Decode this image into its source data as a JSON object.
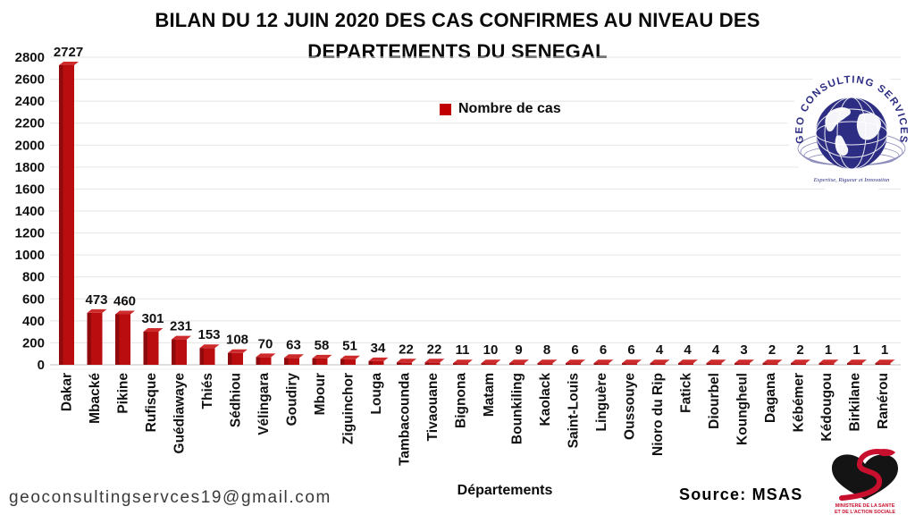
{
  "title": {
    "line1": "BILAN DU 12 JUIN 2020 DES CAS CONFIRMES AU NIVEAU DES",
    "line2": "DEPARTEMENTS DU SENEGAL"
  },
  "legend": {
    "label": "Nombre de cas",
    "color": "#C00000"
  },
  "chart_data": {
    "type": "bar",
    "title": "BILAN DU 12 JUIN 2020 DES CAS CONFIRMES AU NIVEAU DES DEPARTEMENTS DU SENEGAL",
    "categories": [
      "Dakar",
      "Mbacké",
      "Pikine",
      "Rufisque",
      "Guédiawaye",
      "Thiés",
      "Sédhiou",
      "Vélingara",
      "Goudiry",
      "Mbour",
      "Ziguinchor",
      "Louga",
      "Tambacounda",
      "Tivaouane",
      "Bignona",
      "Matam",
      "Bounkiling",
      "Kaolack",
      "Saint-Louis",
      "Linguère",
      "Oussouye",
      "Nioro du Rip",
      "Fatick",
      "Diourbel",
      "Koungheul",
      "Dagana",
      "Kébémer",
      "Kédougou",
      "Birkilane",
      "Ranérou"
    ],
    "values": [
      2727,
      473,
      460,
      301,
      231,
      153,
      108,
      70,
      63,
      58,
      51,
      34,
      22,
      22,
      11,
      10,
      9,
      8,
      6,
      6,
      6,
      4,
      4,
      4,
      3,
      2,
      2,
      1,
      1,
      1
    ],
    "xlabel": "Départements",
    "ylabel": "",
    "ylim": [
      0,
      2800
    ],
    "ytick_step": 200,
    "grid": true,
    "legend": [
      "Nombre de cas"
    ],
    "legend_position": "top-center",
    "bar_color": "#B90D10"
  },
  "footer": {
    "email": "geoconsultingservces19@gmail.com",
    "source": "Source: MSAS",
    "xlabel": "Départements"
  },
  "logos": {
    "geo": {
      "arc_text": "GEO CONSULTING SERVICES",
      "tagline": "Expertise, Rigueur et Innovation",
      "color": "#2D2E83"
    },
    "msas": {
      "line1": "MINISTERE DE LA SANTE",
      "line2": "ET DE L'ACTION SOCIALE"
    }
  }
}
